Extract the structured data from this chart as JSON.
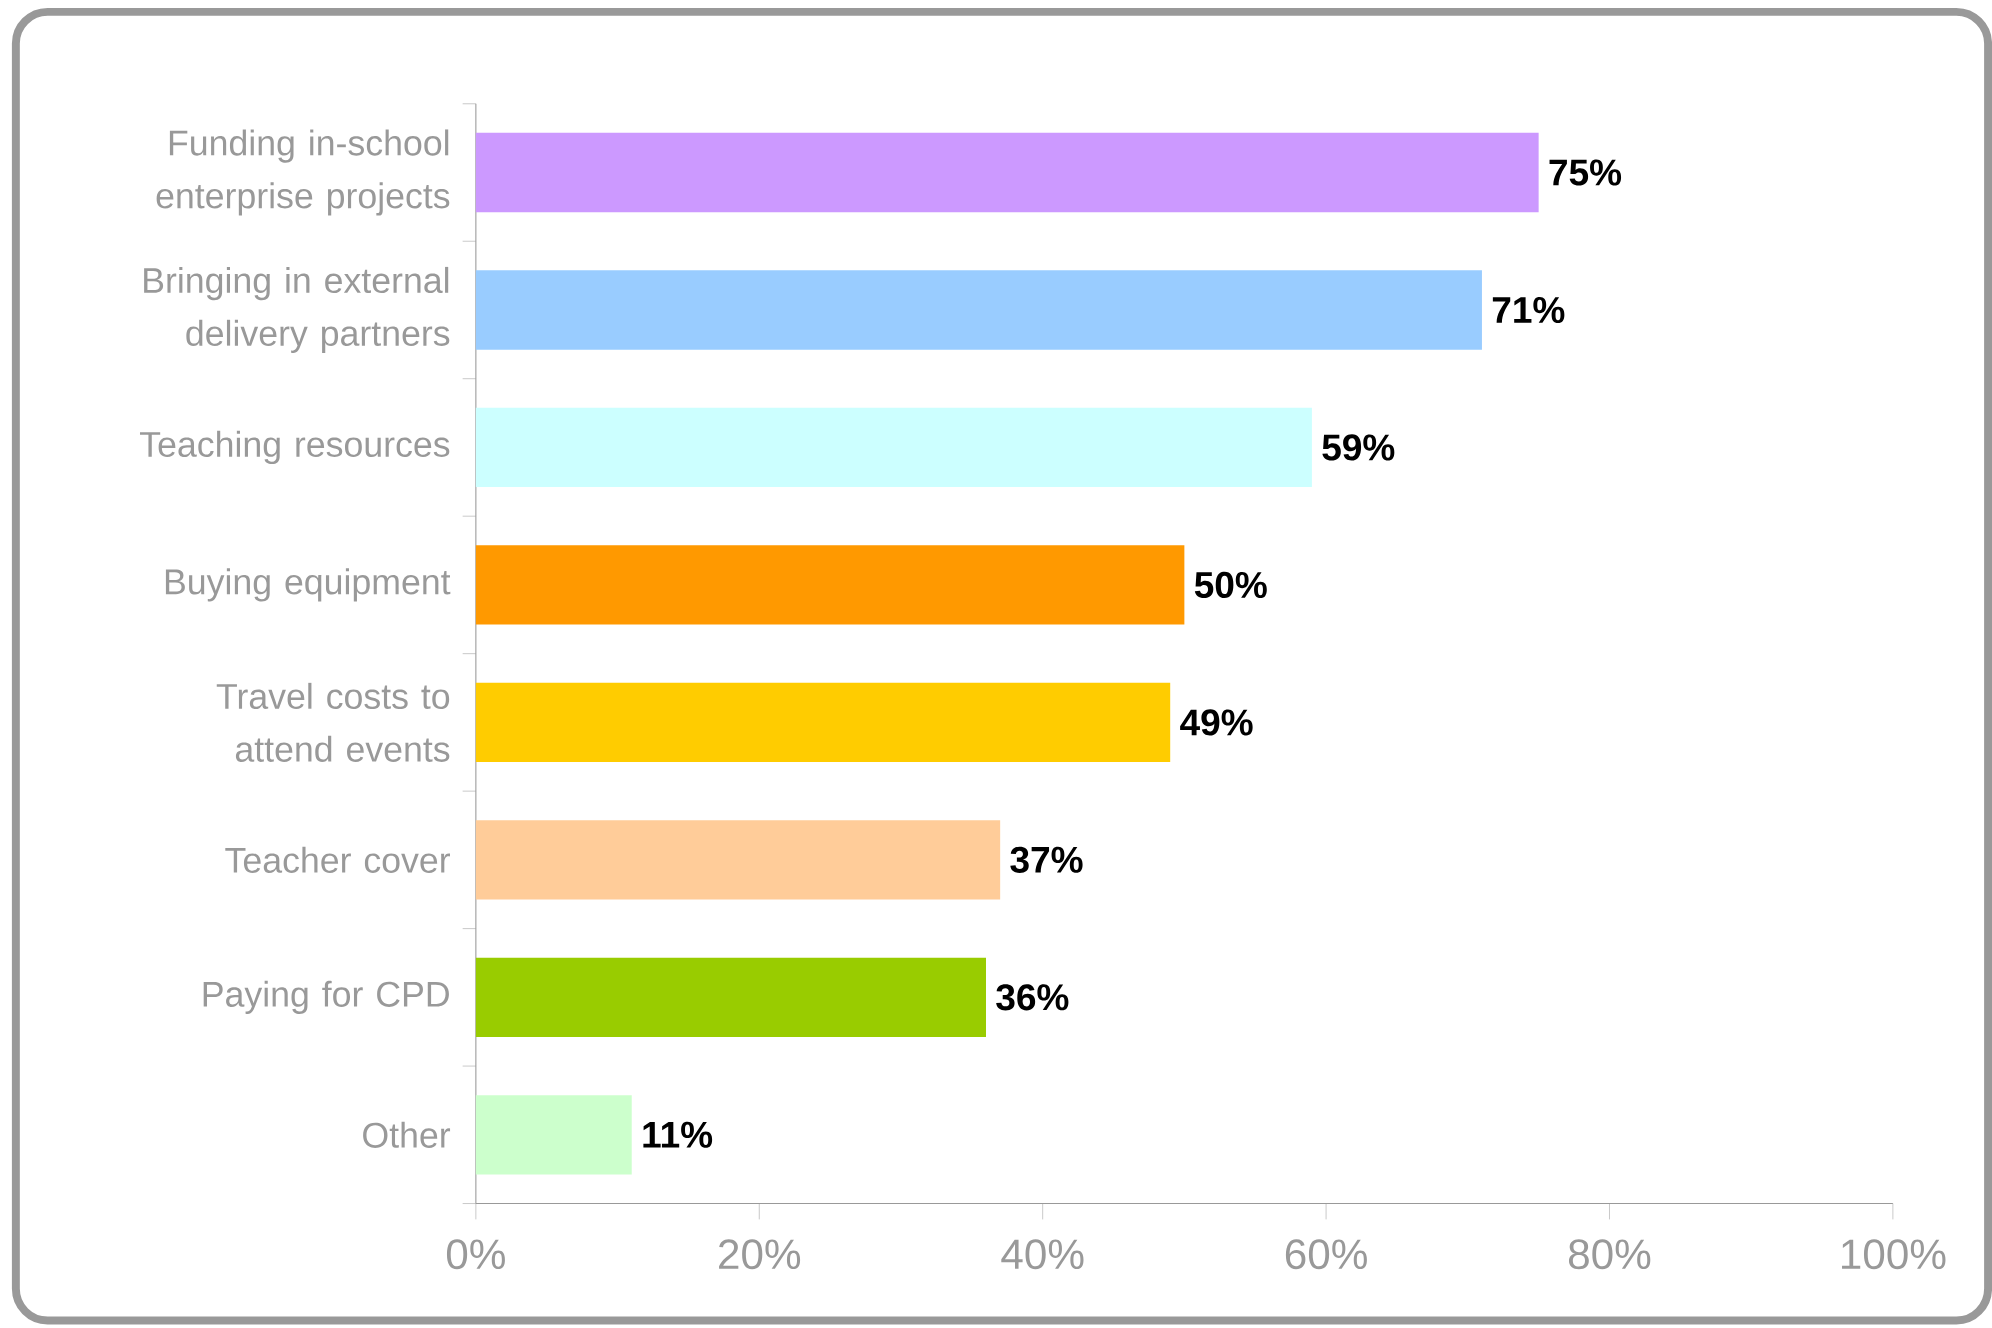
{
  "chart_data": {
    "type": "bar",
    "orientation": "horizontal",
    "categories": [
      "Funding in-school enterprise projects",
      "Bringing in external delivery partners",
      "Teaching resources",
      "Buying equipment",
      "Travel costs to attend events",
      "Teacher cover",
      "Paying for CPD",
      "Other"
    ],
    "values": [
      75,
      71,
      59,
      50,
      49,
      37,
      36,
      11
    ],
    "value_labels": [
      "75%",
      "71%",
      "59%",
      "50%",
      "49%",
      "37%",
      "36%",
      "11%"
    ],
    "colors": [
      "#cc99ff",
      "#99ccff",
      "#ccffff",
      "#ff9900",
      "#ffcc00",
      "#ffcc99",
      "#99cc00",
      "#ccffcc"
    ],
    "xlim": [
      0,
      100
    ],
    "xticks": [
      {
        "value": 0,
        "label": "0%"
      },
      {
        "value": 20,
        "label": "20%"
      },
      {
        "value": 40,
        "label": "40%"
      },
      {
        "value": 60,
        "label": "60%"
      },
      {
        "value": 80,
        "label": "80%"
      },
      {
        "value": 100,
        "label": "100%"
      }
    ],
    "grid": false
  }
}
